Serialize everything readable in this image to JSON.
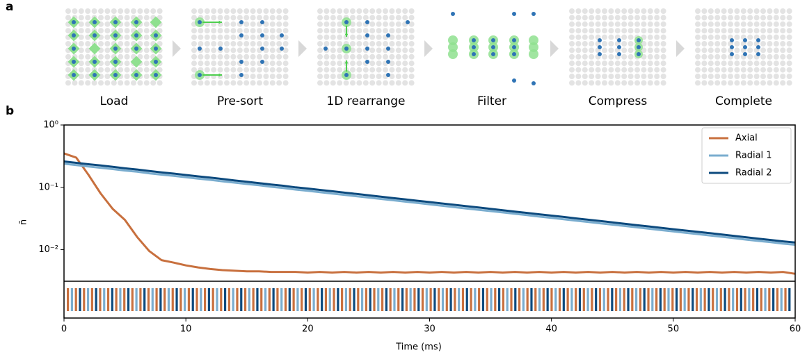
{
  "figure": {
    "panel_labels": [
      "a",
      "b"
    ],
    "steps": [
      "Load",
      "Pre-sort",
      "1D rearrange",
      "Filter",
      "Compress",
      "Complete"
    ]
  },
  "chart_data": {
    "type": "line",
    "log_y": true,
    "xlabel": "Time (ms)",
    "ylabel": "n̄",
    "legend": "upper right",
    "xlim": [
      0,
      60
    ],
    "xticks": [
      0,
      10,
      20,
      30,
      40,
      50,
      60
    ],
    "ylim": [
      0.00312,
      1
    ],
    "yticks": [
      {
        "value": 1,
        "label": "10⁰"
      },
      {
        "value": 0.1,
        "label": "10⁻¹"
      },
      {
        "value": 0.01,
        "label": "10⁻²"
      }
    ],
    "x": [
      0,
      1,
      2,
      3,
      4,
      5,
      6,
      7,
      8,
      9,
      10,
      11,
      12,
      13,
      14,
      15,
      16,
      17,
      18,
      19,
      20,
      21,
      22,
      23,
      24,
      25,
      26,
      27,
      28,
      29,
      30,
      31,
      32,
      33,
      34,
      35,
      36,
      37,
      38,
      39,
      40,
      41,
      42,
      43,
      44,
      45,
      46,
      47,
      48,
      49,
      50,
      51,
      52,
      53,
      54,
      55,
      56,
      57,
      58,
      59,
      60
    ],
    "series": [
      {
        "name": "Axial",
        "color": "#c8703e",
        "values": [
          0.35,
          0.3,
          0.16,
          0.08,
          0.045,
          0.03,
          0.016,
          0.0095,
          0.0068,
          0.0062,
          0.0056,
          0.0052,
          0.0049,
          0.0047,
          0.0046,
          0.0045,
          0.0045,
          0.0044,
          0.0044,
          0.0044,
          0.0043,
          0.0044,
          0.0043,
          0.0044,
          0.0043,
          0.0044,
          0.0043,
          0.0044,
          0.0043,
          0.0044,
          0.0043,
          0.0044,
          0.0043,
          0.0044,
          0.0043,
          0.0044,
          0.0043,
          0.0044,
          0.0043,
          0.0044,
          0.0043,
          0.0044,
          0.0043,
          0.0044,
          0.0043,
          0.0044,
          0.0043,
          0.0044,
          0.0043,
          0.0044,
          0.0043,
          0.0044,
          0.0043,
          0.0044,
          0.0043,
          0.0044,
          0.0043,
          0.0044,
          0.0043,
          0.0044,
          0.0041
        ]
      },
      {
        "name": "Radial 1",
        "color": "#7aadcf",
        "values": [
          0.239,
          0.227,
          0.216,
          0.206,
          0.196,
          0.186,
          0.178,
          0.168,
          0.16,
          0.153,
          0.145,
          0.138,
          0.132,
          0.125,
          0.119,
          0.113,
          0.108,
          0.102,
          0.0975,
          0.092,
          0.088,
          0.0837,
          0.0796,
          0.0757,
          0.072,
          0.0685,
          0.0651,
          0.062,
          0.059,
          0.0561,
          0.0534,
          0.0508,
          0.0483,
          0.0459,
          0.0437,
          0.0416,
          0.0396,
          0.0376,
          0.0358,
          0.034,
          0.0324,
          0.0308,
          0.0293,
          0.0279,
          0.0265,
          0.0252,
          0.024,
          0.0228,
          0.0217,
          0.0206,
          0.0196,
          0.0187,
          0.0178,
          0.0169,
          0.0161,
          0.0153,
          0.0145,
          0.0138,
          0.0132,
          0.0125,
          0.012
        ]
      },
      {
        "name": "Radial 2",
        "color": "#0c4a7e",
        "values": [
          0.26,
          0.247,
          0.235,
          0.224,
          0.213,
          0.202,
          0.193,
          0.183,
          0.174,
          0.166,
          0.158,
          0.15,
          0.143,
          0.136,
          0.129,
          0.123,
          0.117,
          0.111,
          0.106,
          0.1,
          0.0956,
          0.091,
          0.0865,
          0.0823,
          0.0783,
          0.0745,
          0.0708,
          0.0674,
          0.0641,
          0.061,
          0.058,
          0.0552,
          0.0525,
          0.0499,
          0.0475,
          0.0452,
          0.043,
          0.0409,
          0.0389,
          0.037,
          0.0352,
          0.0335,
          0.0318,
          0.0303,
          0.0288,
          0.0274,
          0.0261,
          0.0248,
          0.0236,
          0.0224,
          0.0213,
          0.0203,
          0.0193,
          0.0184,
          0.0175,
          0.0166,
          0.0158,
          0.015,
          0.0143,
          0.0136,
          0.013
        ]
      }
    ]
  }
}
